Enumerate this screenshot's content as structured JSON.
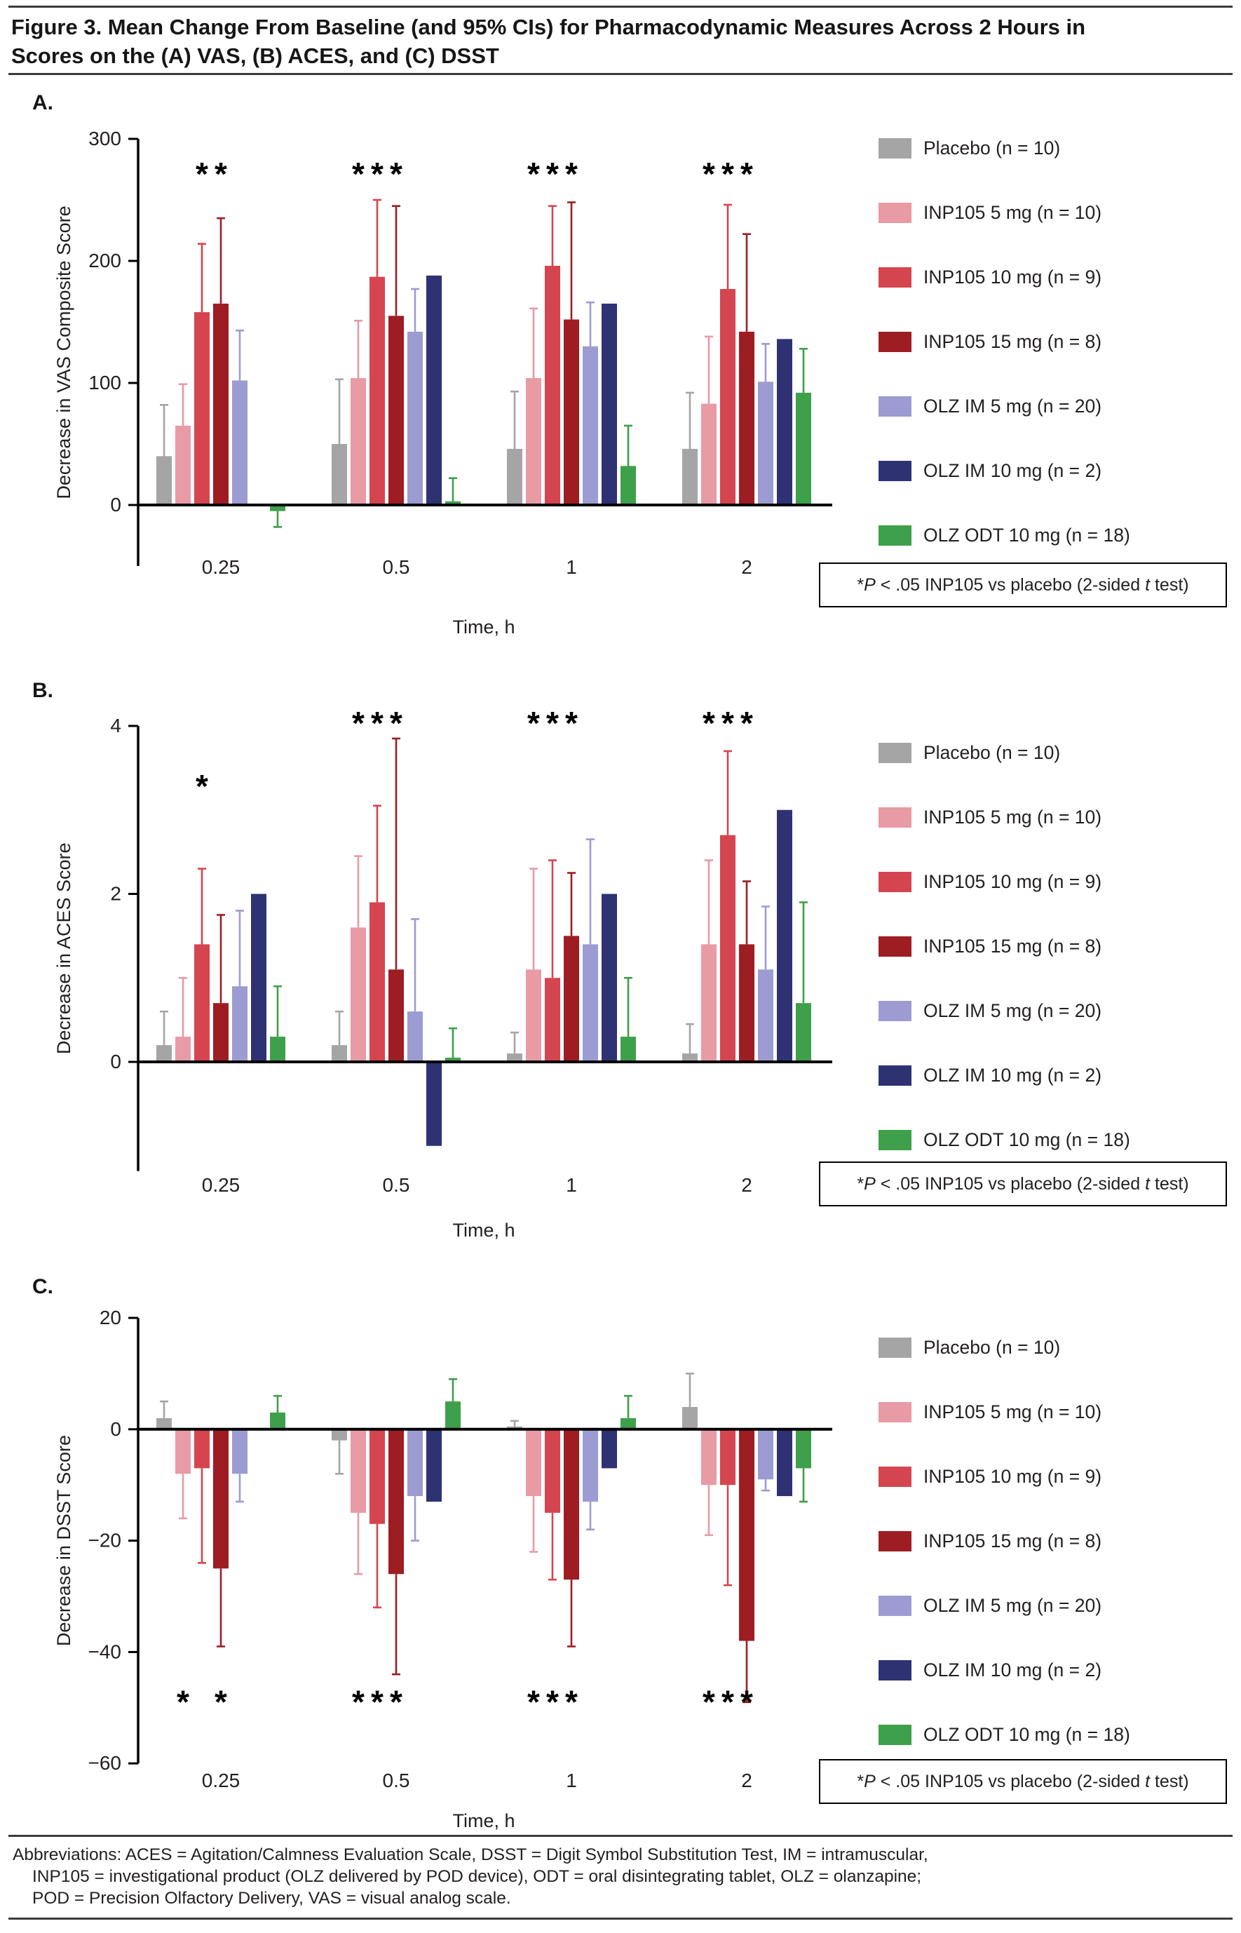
{
  "figure": {
    "title_line1": "Figure 3. Mean Change From Baseline (and 95% CIs) for Pharmacodynamic Measures Across 2 Hours in",
    "title_line2": "Scores on the (A) VAS, (B) ACES, and (C) DSST"
  },
  "footnote": {
    "star": "*",
    "p": "P",
    "mid": " < .05 INP105 vs placebo (2-sided ",
    "t": "t",
    "end": " test)"
  },
  "abbreviations": {
    "line1": "Abbreviations: ACES = Agitation/Calmness Evaluation Scale, DSST = Digit Symbol Substitution Test, IM = intramuscular,",
    "line2": "INP105 = investigational product (OLZ delivered by POD device), ODT = oral disintegrating tablet, OLZ = olanzapine;",
    "line3": "POD = Precision Olfactory Delivery, VAS = visual analog scale."
  },
  "chart_data": [
    {
      "panel_label": "A.",
      "type": "bar",
      "title": "",
      "ylabel": "Decrease in VAS Composite Score",
      "xlabel": "Time, h",
      "categories": [
        "0.25",
        "0.5",
        "1",
        "2"
      ],
      "yticks": [
        0,
        100,
        200,
        300
      ],
      "ylim": [
        -50,
        300
      ],
      "legend_position": "right",
      "grid": false,
      "series": [
        {
          "name": "Placebo (n = 10)",
          "color": "#a6a5a5",
          "values": [
            40,
            50,
            46,
            46
          ],
          "err": [
            82,
            103,
            93,
            92
          ]
        },
        {
          "name": "INP105 5 mg (n = 10)",
          "color": "#e89aa5",
          "values": [
            65,
            104,
            104,
            83
          ],
          "err": [
            99,
            151,
            161,
            138
          ]
        },
        {
          "name": "INP105 10 mg (n = 9)",
          "color": "#d5454f",
          "values": [
            158,
            187,
            196,
            177
          ],
          "err": [
            214,
            250,
            245,
            246
          ]
        },
        {
          "name": "INP105 15 mg (n = 8)",
          "color": "#9d1d23",
          "values": [
            165,
            155,
            152,
            142
          ],
          "err": [
            235,
            245,
            248,
            222
          ]
        },
        {
          "name": "OLZ IM 5 mg (n = 20)",
          "color": "#9c9cd2",
          "values": [
            102,
            142,
            130,
            101
          ],
          "err": [
            143,
            177,
            166,
            132
          ]
        },
        {
          "name": "OLZ IM 10 mg (n = 2)",
          "color": "#2e3273",
          "values": [
            0,
            188,
            165,
            136
          ],
          "err": [
            null,
            null,
            null,
            null
          ]
        },
        {
          "name": "OLZ ODT 10 mg (n = 18)",
          "color": "#3ea04a",
          "values": [
            -5,
            3,
            32,
            92
          ],
          "err": [
            -18,
            22,
            65,
            128
          ]
        }
      ],
      "sig": [
        {
          "cat": 0,
          "series": [
            2,
            3
          ],
          "y": 262
        },
        {
          "cat": 1,
          "series": [
            1,
            2,
            3
          ],
          "y": 262
        },
        {
          "cat": 2,
          "series": [
            1,
            2,
            3
          ],
          "y": 262
        },
        {
          "cat": 3,
          "series": [
            1,
            2,
            3
          ],
          "y": 262
        }
      ]
    },
    {
      "panel_label": "B.",
      "type": "bar",
      "title": "",
      "ylabel": "Decrease in ACES Score",
      "xlabel": "Time, h",
      "categories": [
        "0.25",
        "0.5",
        "1",
        "2"
      ],
      "yticks": [
        0,
        2,
        4
      ],
      "ylim": [
        -1.3,
        4
      ],
      "legend_position": "right",
      "grid": false,
      "series": [
        {
          "name": "Placebo (n = 10)",
          "color": "#a6a5a5",
          "values": [
            0.2,
            0.2,
            0.1,
            0.1
          ],
          "err": [
            0.6,
            0.6,
            0.35,
            0.45
          ]
        },
        {
          "name": "INP105 5 mg (n = 10)",
          "color": "#e89aa5",
          "values": [
            0.3,
            1.6,
            1.1,
            1.4
          ],
          "err": [
            1.0,
            2.45,
            2.3,
            2.4
          ]
        },
        {
          "name": "INP105 10 mg (n = 9)",
          "color": "#d5454f",
          "values": [
            1.4,
            1.9,
            1.0,
            2.7
          ],
          "err": [
            2.3,
            3.05,
            2.4,
            3.7
          ]
        },
        {
          "name": "INP105 15 mg (n = 8)",
          "color": "#9d1d23",
          "values": [
            0.7,
            1.1,
            1.5,
            1.4
          ],
          "err": [
            1.75,
            3.85,
            2.25,
            2.15
          ]
        },
        {
          "name": "OLZ IM 5 mg (n = 20)",
          "color": "#9c9cd2",
          "values": [
            0.9,
            0.6,
            1.4,
            1.1
          ],
          "err": [
            1.8,
            1.7,
            2.65,
            1.85
          ]
        },
        {
          "name": "OLZ IM 10 mg (n = 2)",
          "color": "#2e3273",
          "values": [
            2.0,
            -1.0,
            2.0,
            3.0
          ],
          "err": [
            null,
            null,
            null,
            null
          ]
        },
        {
          "name": "OLZ ODT 10 mg (n = 18)",
          "color": "#3ea04a",
          "values": [
            0.3,
            0.05,
            0.3,
            0.7
          ],
          "err": [
            0.9,
            0.4,
            1.0,
            1.9
          ]
        }
      ],
      "sig": [
        {
          "cat": 0,
          "series": [
            2
          ],
          "y": 3.15
        },
        {
          "cat": 1,
          "series": [
            1,
            2,
            3
          ],
          "y": 3.9
        },
        {
          "cat": 2,
          "series": [
            1,
            2,
            3
          ],
          "y": 3.9
        },
        {
          "cat": 3,
          "series": [
            1,
            2,
            3
          ],
          "y": 3.9
        }
      ]
    },
    {
      "panel_label": "C.",
      "type": "bar",
      "title": "",
      "ylabel": "Decrease in DSST Score",
      "xlabel": "Time, h",
      "categories": [
        "0.25",
        "0.5",
        "1",
        "2"
      ],
      "yticks": [
        20,
        0,
        -20,
        -40,
        -60
      ],
      "ylim": [
        -60,
        20
      ],
      "legend_position": "right",
      "grid": false,
      "series": [
        {
          "name": "Placebo (n = 10)",
          "color": "#a6a5a5",
          "values": [
            2,
            -2,
            0.5,
            4
          ],
          "err": [
            5,
            -8,
            1.5,
            10
          ]
        },
        {
          "name": "INP105 5 mg (n = 10)",
          "color": "#e89aa5",
          "values": [
            -8,
            -15,
            -12,
            -10
          ],
          "err": [
            -16,
            -26,
            -22,
            -19
          ]
        },
        {
          "name": "INP105 10 mg (n = 9)",
          "color": "#d5454f",
          "values": [
            -7,
            -17,
            -15,
            -10
          ],
          "err": [
            -24,
            -32,
            -27,
            -28
          ]
        },
        {
          "name": "INP105 15 mg (n = 8)",
          "color": "#9d1d23",
          "values": [
            -25,
            -26,
            -27,
            -38
          ],
          "err": [
            -39,
            -44,
            -39,
            -49
          ]
        },
        {
          "name": "OLZ IM 5 mg (n = 20)",
          "color": "#9c9cd2",
          "values": [
            -8,
            -12,
            -13,
            -9
          ],
          "err": [
            -13,
            -20,
            -18,
            -11
          ]
        },
        {
          "name": "OLZ IM 10 mg (n = 2)",
          "color": "#2e3273",
          "values": [
            0,
            -13,
            -7,
            -12
          ],
          "err": [
            null,
            null,
            null,
            null
          ]
        },
        {
          "name": "OLZ ODT 10 mg (n = 18)",
          "color": "#3ea04a",
          "values": [
            3,
            5,
            2,
            -7
          ],
          "err": [
            6,
            9,
            6,
            -13
          ]
        }
      ],
      "sig": [
        {
          "cat": 0,
          "series": [
            1,
            3
          ],
          "y": -51
        },
        {
          "cat": 1,
          "series": [
            1,
            2,
            3
          ],
          "y": -51
        },
        {
          "cat": 2,
          "series": [
            1,
            2,
            3
          ],
          "y": -51
        },
        {
          "cat": 3,
          "series": [
            1,
            2,
            3
          ],
          "y": -51
        }
      ]
    }
  ]
}
